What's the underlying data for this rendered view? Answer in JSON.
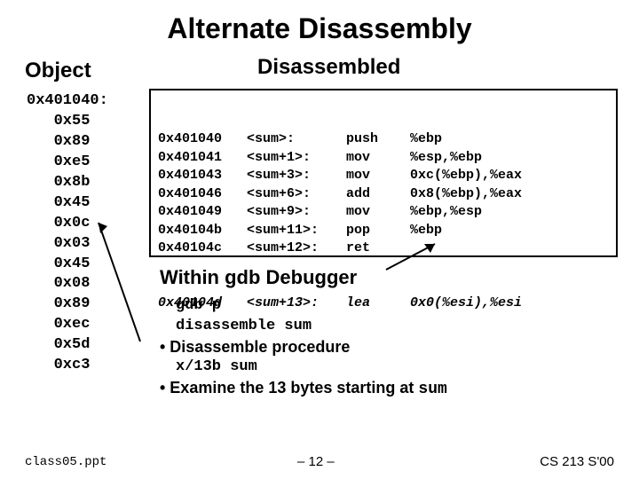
{
  "title": "Alternate Disassembly",
  "headers": {
    "object": "Object",
    "disassembled": "Disassembled"
  },
  "object_block": "0x401040:\n   0x55\n   0x89\n   0xe5\n   0x8b\n   0x45\n   0x0c\n   0x03\n   0x45\n   0x08\n   0x89\n   0xec\n   0x5d\n   0xc3",
  "disasm": [
    {
      "addr": "0x401040",
      "off": "<sum>:",
      "mn": "push",
      "arg": "%ebp"
    },
    {
      "addr": "0x401041",
      "off": "<sum+1>:",
      "mn": "mov",
      "arg": "%esp,%ebp"
    },
    {
      "addr": "0x401043",
      "off": "<sum+3>:",
      "mn": "mov",
      "arg": "0xc(%ebp),%eax"
    },
    {
      "addr": "0x401046",
      "off": "<sum+6>:",
      "mn": "add",
      "arg": "0x8(%ebp),%eax"
    },
    {
      "addr": "0x401049",
      "off": "<sum+9>:",
      "mn": "mov",
      "arg": "%ebp,%esp"
    },
    {
      "addr": "0x40104b",
      "off": "<sum+11>:",
      "mn": "pop",
      "arg": "%ebp"
    },
    {
      "addr": "0x40104c",
      "off": "<sum+12>:",
      "mn": "ret",
      "arg": ""
    }
  ],
  "disasm_last": {
    "addr": "0x40104d",
    "off": "<sum+13>:",
    "mn": "lea",
    "arg": "0x0(%esi),%esi"
  },
  "gdb": {
    "title": "Within gdb Debugger",
    "cmd1": "gdb p",
    "cmd2": "disassemble sum",
    "bullet1": "• Disassemble procedure",
    "cmd3": "x/13b sum",
    "bullet2a": "• Examine the 13 bytes starting at ",
    "bullet2b": "sum"
  },
  "footer": {
    "left": "class05.ppt",
    "mid": "– 12 –",
    "right": "CS 213 S'00"
  },
  "arrow_stroke": "#000000"
}
